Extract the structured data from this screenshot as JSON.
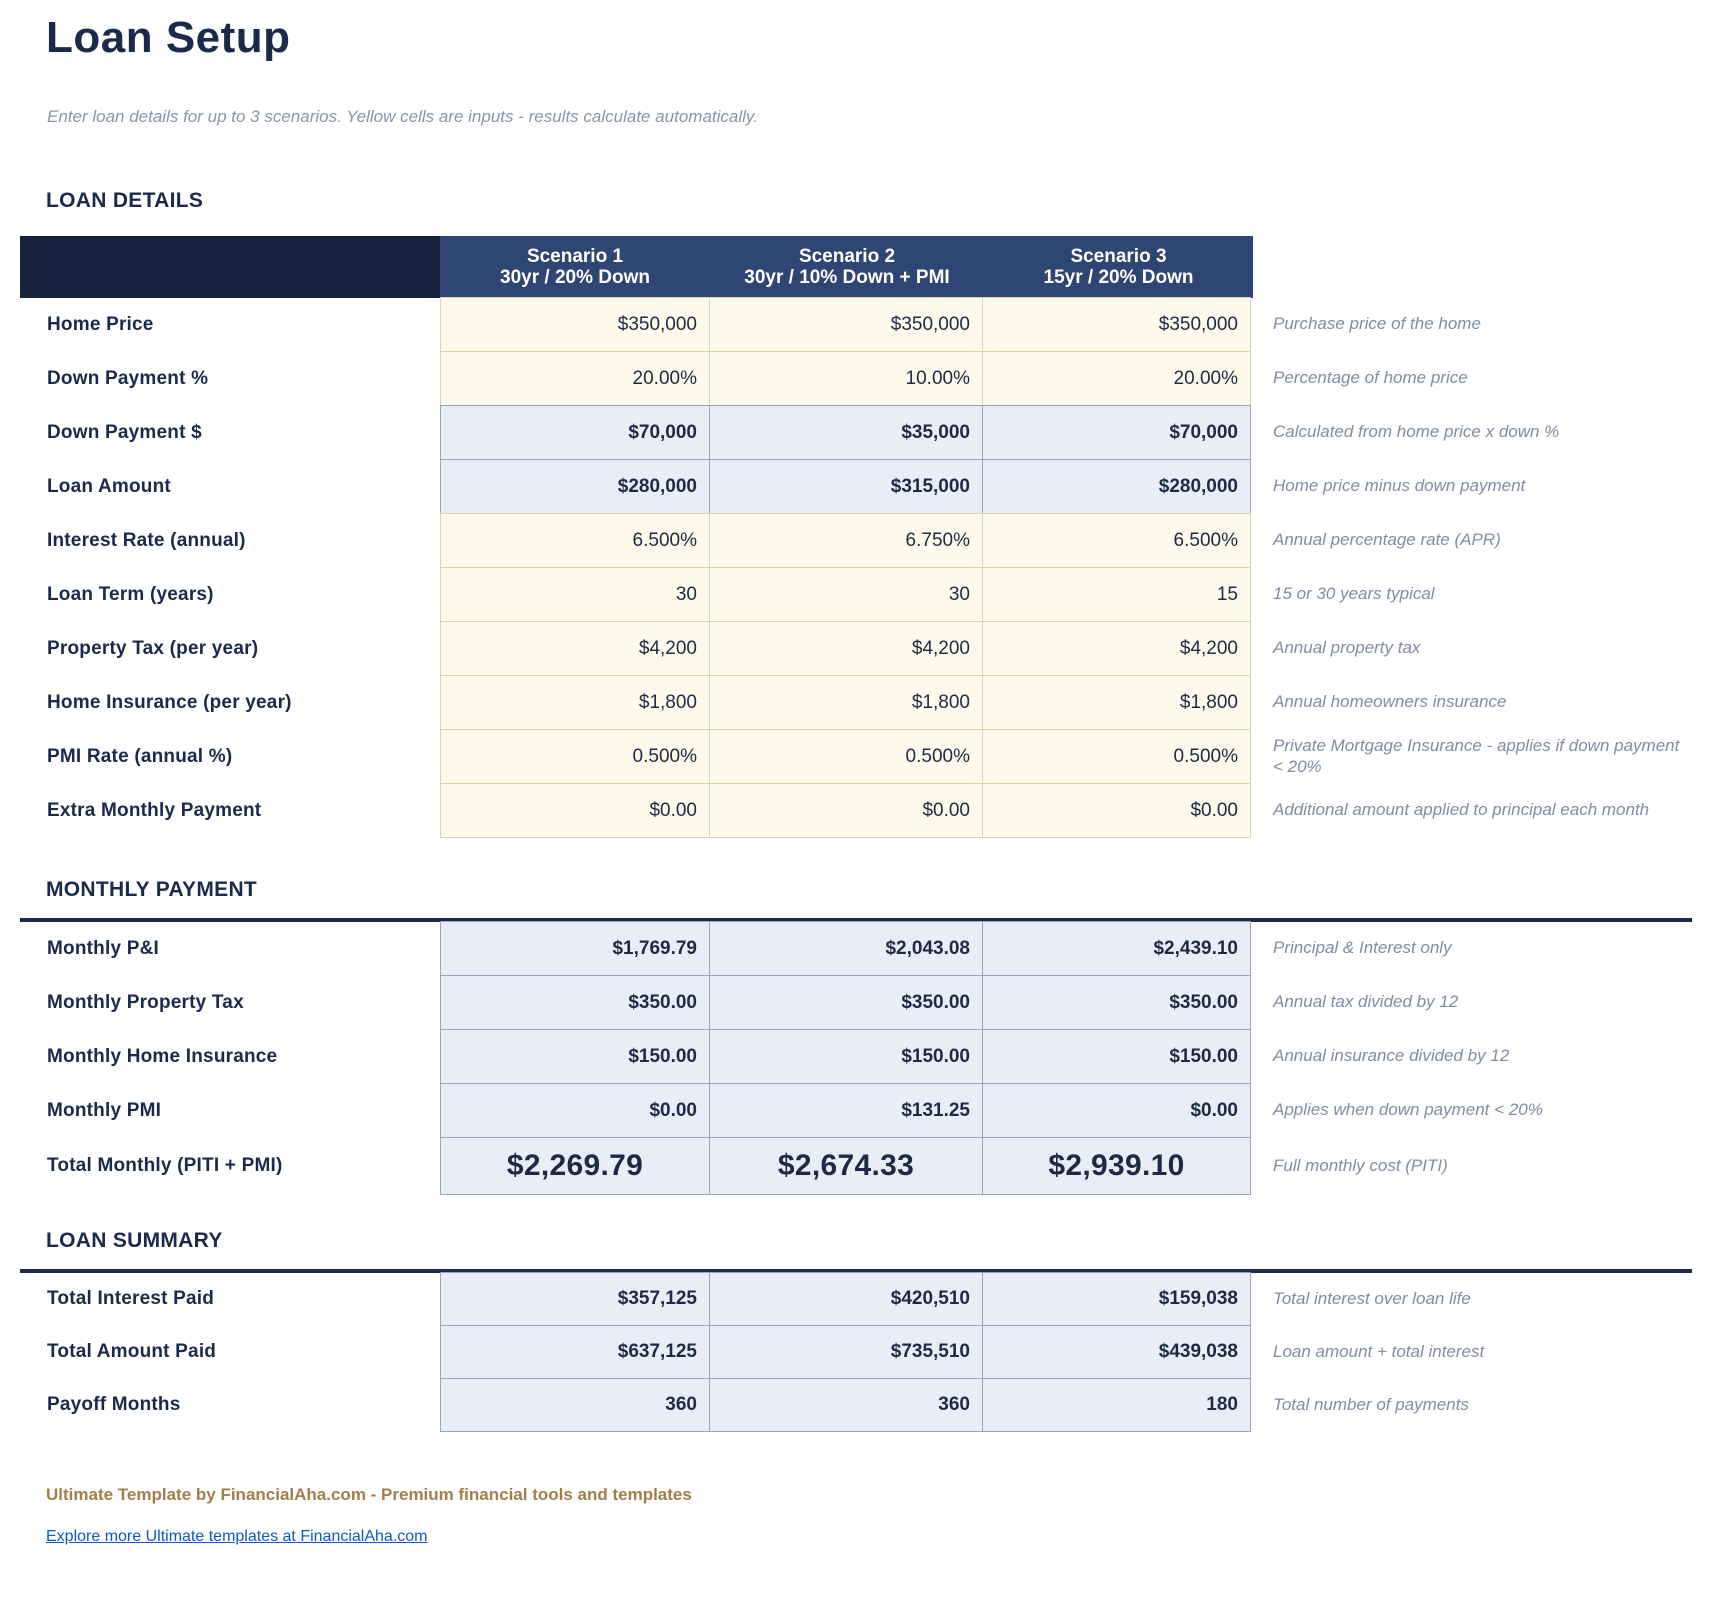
{
  "page": {
    "title": "Loan Setup",
    "subtitle": "Enter loan details for up to 3 scenarios. Yellow cells are inputs - results calculate automatically."
  },
  "colors": {
    "navy_text": "#1b2a4a",
    "header_dark_bg": "#16213c",
    "header_blue_bg": "#2f4573",
    "input_cell_bg": "#fdf9eb",
    "input_cell_border": "#ddd3ae",
    "calc_cell_bg": "#e9edf7",
    "calc_cell_border": "#99a3ba",
    "note_gray": "#818ba1",
    "brand_gold": "#a08048",
    "link_blue": "#1155cc"
  },
  "scenario_headers": [
    {
      "name": "Scenario 1",
      "desc": "30yr / 20% Down"
    },
    {
      "name": "Scenario 2",
      "desc": "30yr / 10% Down + PMI"
    },
    {
      "name": "Scenario 3",
      "desc": "15yr / 20% Down"
    }
  ],
  "sections": [
    {
      "title": "LOAN DETAILS",
      "rows": [
        {
          "label": "Home Price",
          "type": "input",
          "values": [
            "$350,000",
            "$350,000",
            "$350,000"
          ],
          "note": "Purchase price of the home"
        },
        {
          "label": "Down Payment %",
          "type": "input",
          "values": [
            "20.00%",
            "10.00%",
            "20.00%"
          ],
          "note": "Percentage of home price"
        },
        {
          "label": "Down Payment $",
          "type": "calc",
          "values": [
            "$70,000",
            "$35,000",
            "$70,000"
          ],
          "note": "Calculated from home price x down %"
        },
        {
          "label": "Loan Amount",
          "type": "calc",
          "values": [
            "$280,000",
            "$315,000",
            "$280,000"
          ],
          "note": "Home price minus down payment"
        },
        {
          "label": "Interest Rate (annual)",
          "type": "input",
          "values": [
            "6.500%",
            "6.750%",
            "6.500%"
          ],
          "note": "Annual percentage rate (APR)"
        },
        {
          "label": "Loan Term (years)",
          "type": "input",
          "values": [
            "30",
            "30",
            "15"
          ],
          "note": "15 or 30 years typical"
        },
        {
          "label": "Property Tax (per year)",
          "type": "input",
          "values": [
            "$4,200",
            "$4,200",
            "$4,200"
          ],
          "note": "Annual property tax"
        },
        {
          "label": "Home Insurance (per year)",
          "type": "input",
          "values": [
            "$1,800",
            "$1,800",
            "$1,800"
          ],
          "note": "Annual homeowners insurance"
        },
        {
          "label": "PMI Rate (annual %)",
          "type": "input",
          "values": [
            "0.500%",
            "0.500%",
            "0.500%"
          ],
          "note": "Private Mortgage Insurance - applies if down payment < 20%"
        },
        {
          "label": "Extra Monthly Payment",
          "type": "input",
          "values": [
            "$0.00",
            "$0.00",
            "$0.00"
          ],
          "note": "Additional amount applied to principal each month"
        }
      ]
    },
    {
      "title": "MONTHLY PAYMENT",
      "rows": [
        {
          "label": "Monthly P&I",
          "type": "calc",
          "values": [
            "$1,769.79",
            "$2,043.08",
            "$2,439.10"
          ],
          "note": "Principal & Interest only"
        },
        {
          "label": "Monthly Property Tax",
          "type": "calc",
          "values": [
            "$350.00",
            "$350.00",
            "$350.00"
          ],
          "note": "Annual tax divided by 12"
        },
        {
          "label": "Monthly Home Insurance",
          "type": "calc",
          "values": [
            "$150.00",
            "$150.00",
            "$150.00"
          ],
          "note": "Annual insurance divided by 12"
        },
        {
          "label": "Monthly PMI",
          "type": "calc",
          "values": [
            "$0.00",
            "$131.25",
            "$0.00"
          ],
          "note": "Applies when down payment < 20%"
        },
        {
          "label": "Total Monthly (PITI + PMI)",
          "type": "total",
          "values": [
            "$2,269.79",
            "$2,674.33",
            "$2,939.10"
          ],
          "note": "Full monthly cost (PITI)"
        }
      ]
    },
    {
      "title": "LOAN SUMMARY",
      "rows": [
        {
          "label": "Total Interest Paid",
          "type": "calc",
          "values": [
            "$357,125",
            "$420,510",
            "$159,038"
          ],
          "note": "Total interest over loan life"
        },
        {
          "label": "Total Amount Paid",
          "type": "calc",
          "values": [
            "$637,125",
            "$735,510",
            "$439,038"
          ],
          "note": "Loan amount + total interest"
        },
        {
          "label": "Payoff Months",
          "type": "calc",
          "values": [
            "360",
            "360",
            "180"
          ],
          "note": "Total number of payments"
        }
      ]
    }
  ],
  "footer": {
    "brand": "Ultimate Template by FinancialAha.com - Premium financial tools and templates",
    "link_text": "Explore more Ultimate templates at FinancialAha.com"
  }
}
